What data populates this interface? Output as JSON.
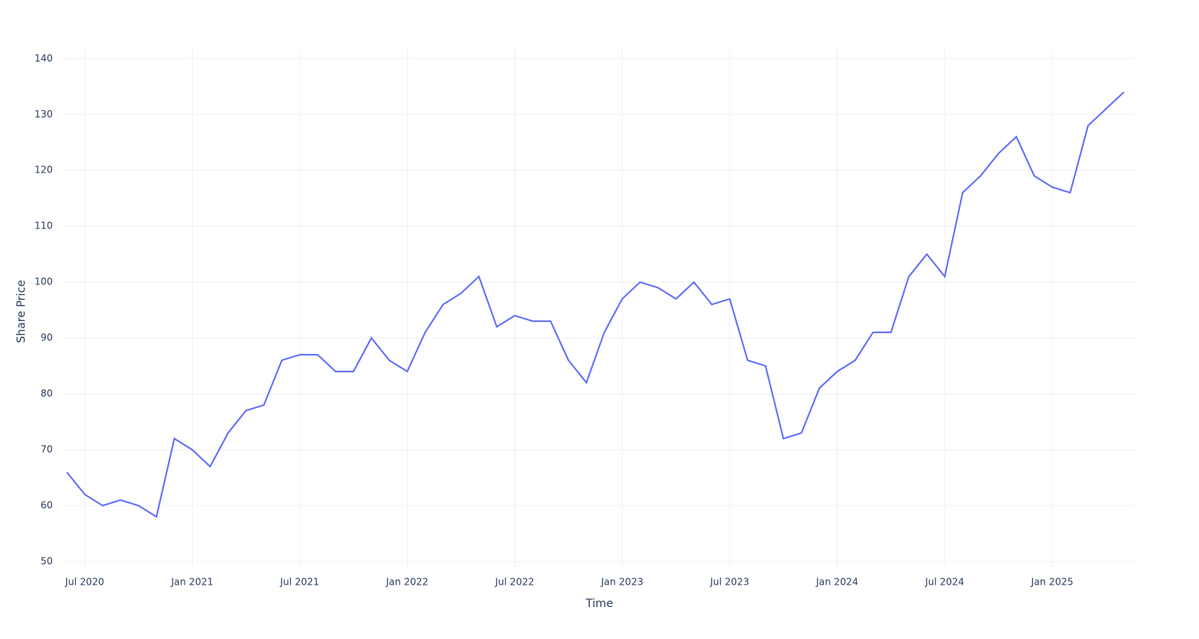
{
  "chart_data": {
    "type": "line",
    "x_label": "Time",
    "y_label": "Share Price",
    "x": [
      "2020-06",
      "2020-07",
      "2020-08",
      "2020-09",
      "2020-10",
      "2020-11",
      "2020-12",
      "2021-01",
      "2021-02",
      "2021-03",
      "2021-04",
      "2021-05",
      "2021-06",
      "2021-07",
      "2021-08",
      "2021-09",
      "2021-10",
      "2021-11",
      "2021-12",
      "2022-01",
      "2022-02",
      "2022-03",
      "2022-04",
      "2022-05",
      "2022-06",
      "2022-07",
      "2022-08",
      "2022-09",
      "2022-10",
      "2022-11",
      "2022-12",
      "2023-01",
      "2023-02",
      "2023-03",
      "2023-04",
      "2023-05",
      "2023-06",
      "2023-07",
      "2023-08",
      "2023-09",
      "2023-10",
      "2023-11",
      "2023-12",
      "2024-01",
      "2024-02",
      "2024-03",
      "2024-04",
      "2024-05",
      "2024-06",
      "2024-07",
      "2024-08",
      "2024-09",
      "2024-10",
      "2024-11",
      "2024-12",
      "2025-01",
      "2025-02",
      "2025-03",
      "2025-04",
      "2025-05"
    ],
    "series": [
      {
        "color": "#636efa",
        "values": [
          66,
          62,
          60,
          61,
          60,
          58,
          72,
          70,
          67,
          73,
          77,
          78,
          86,
          87,
          87,
          84,
          84,
          90,
          86,
          84,
          91,
          96,
          98,
          101,
          92,
          94,
          93,
          93,
          86,
          82,
          91,
          97,
          100,
          99,
          97,
          100,
          96,
          97,
          86,
          85,
          72,
          73,
          81,
          84,
          86,
          91,
          91,
          101,
          105,
          101,
          116,
          119,
          123,
          126,
          119,
          117,
          116,
          128,
          131,
          134
        ]
      }
    ],
    "xlim": [
      "2020-06",
      "2025-05"
    ],
    "xticks": [
      {
        "value": "2020-07",
        "label": "Jul 2020"
      },
      {
        "value": "2021-01",
        "label": "Jan 2021"
      },
      {
        "value": "2021-07",
        "label": "Jul 2021"
      },
      {
        "value": "2022-01",
        "label": "Jan 2022"
      },
      {
        "value": "2022-07",
        "label": "Jul 2022"
      },
      {
        "value": "2023-01",
        "label": "Jan 2023"
      },
      {
        "value": "2023-07",
        "label": "Jul 2023"
      },
      {
        "value": "2024-01",
        "label": "Jan 2024"
      },
      {
        "value": "2024-07",
        "label": "Jul 2024"
      },
      {
        "value": "2025-01",
        "label": "Jan 2025"
      }
    ],
    "ylim": [
      49,
      141.9
    ],
    "yticks": [
      50,
      60,
      70,
      80,
      90,
      100,
      110,
      120,
      130,
      140
    ],
    "grid": true
  }
}
